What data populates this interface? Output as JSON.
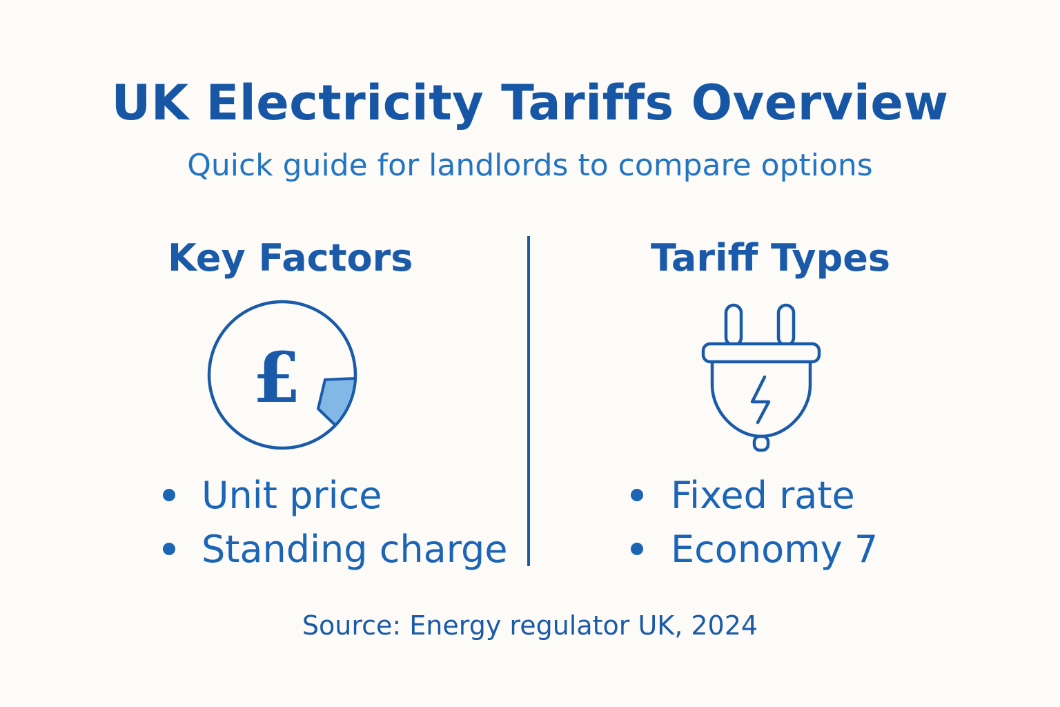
{
  "title": "UK Electricity Tariffs Overview",
  "subtitle": "Quick guide for landlords to compare options",
  "left_column": {
    "heading": "Key Factors",
    "icon": "pound-coin-icon",
    "items": [
      "Unit price",
      "Standing charge"
    ]
  },
  "right_column": {
    "heading": "Tariff Types",
    "icon": "electric-plug-icon",
    "items": [
      "Fixed rate",
      "Economy 7"
    ]
  },
  "source": "Source: Energy regulator UK, 2024",
  "colors": {
    "background": "#fcfbf7",
    "primary": "#1a5aa8",
    "accent_fill": "#82b8e6"
  }
}
